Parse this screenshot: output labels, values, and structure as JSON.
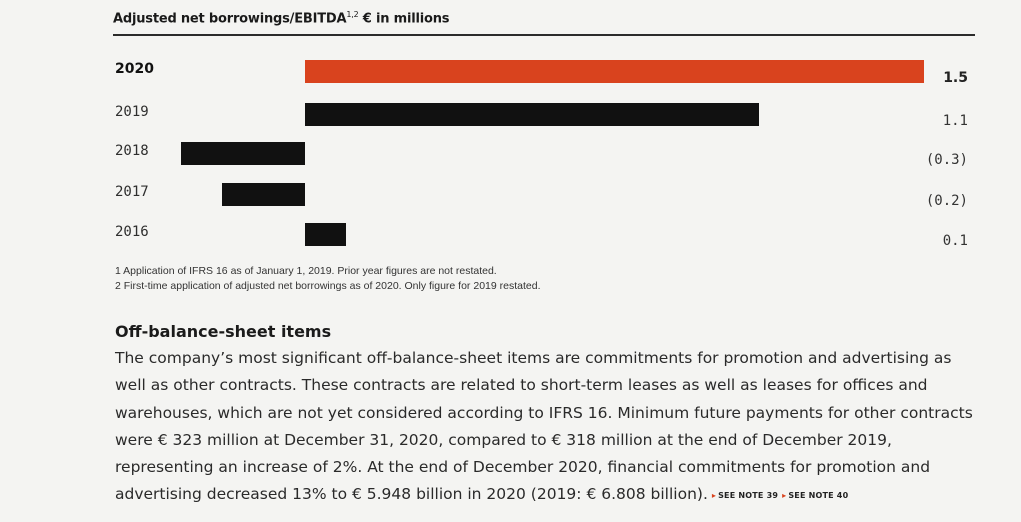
{
  "chart_title": {
    "text": "Adjusted net borrowings/EBITDA",
    "superscript": "1,2",
    "unit": "€ in millions"
  },
  "chart_data": {
    "type": "bar",
    "orientation": "horizontal",
    "title": "Adjusted net borrowings/EBITDA",
    "categories": [
      "2020",
      "2019",
      "2018",
      "2017",
      "2016"
    ],
    "values": [
      1.5,
      1.1,
      -0.3,
      -0.2,
      0.1
    ],
    "value_labels": [
      "1.5",
      "1.1",
      "(0.3)",
      "(0.2)",
      "0.1"
    ],
    "xlim": [
      -0.32,
      1.5
    ],
    "colors": {
      "current": "#d9431e",
      "default": "#111111"
    }
  },
  "footnotes": [
    "1 Application of IFRS 16 as of January 1, 2019. Prior year figures are not restated.",
    "2 First-time application of adjusted net borrowings as of 2020. Only figure for 2019 restated."
  ],
  "section": {
    "heading": "Off-balance-sheet items",
    "body": "The company’s most significant off-balance-sheet items are commitments for promotion and advertising as well as other contracts. These contracts are related to short-term leases as well as leases for offices and warehouses, which are not yet considered according to IFRS 16. Minimum future payments for other contracts were € 323 million at December 31, 2020, compared to € 318 million at the end of December 2019, representing an increase of 2%. At the end of December 2020, financial commitments for promotion and advertising decreased 13% to € 5.948 billion in 2020 (2019: € 6.808 billion).",
    "note_refs": [
      "SEE NOTE 39",
      "SEE NOTE 40"
    ]
  }
}
